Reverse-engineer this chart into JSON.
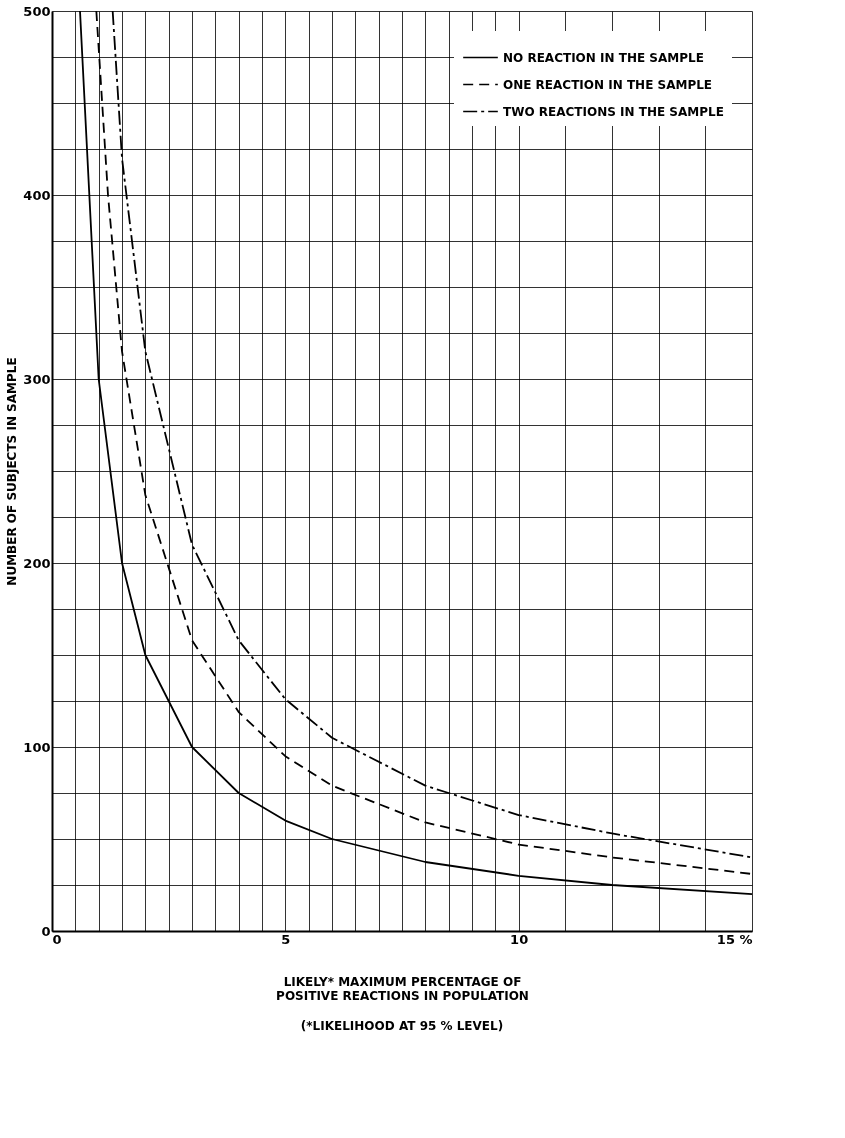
{
  "chart_data": {
    "type": "line",
    "xlabel": "LIKELY* MAXIMUM PERCENTAGE OF POSITIVE REACTIONS IN POPULATION",
    "ylabel": "NUMBER OF SUBJECTS IN SAMPLE",
    "annotations": [
      "(*LIKELIHOOD AT 95 % LEVEL)"
    ],
    "xlim": [
      0,
      15
    ],
    "ylim": [
      0,
      500
    ],
    "xticks": [
      0,
      {
        "value": 0.5,
        "label": null
      },
      {
        "value": 1,
        "label": null
      },
      {
        "value": 1.5,
        "label": null
      },
      {
        "value": 2,
        "label": null
      },
      {
        "value": 2.5,
        "label": null
      },
      {
        "value": 3,
        "label": null
      },
      {
        "value": 3.5,
        "label": null
      },
      {
        "value": 4,
        "label": null
      },
      {
        "value": 4.5,
        "label": null
      },
      5,
      {
        "value": 5.5,
        "label": null
      },
      {
        "value": 6,
        "label": null
      },
      {
        "value": 6.5,
        "label": null
      },
      {
        "value": 7,
        "label": null
      },
      {
        "value": 7.5,
        "label": null
      },
      {
        "value": 8,
        "label": null
      },
      {
        "value": 8.5,
        "label": null
      },
      {
        "value": 9,
        "label": null
      },
      {
        "value": 9.5,
        "label": null
      },
      10,
      {
        "value": 11,
        "label": null
      },
      {
        "value": 12,
        "label": null
      },
      {
        "value": 13,
        "label": null
      },
      {
        "value": 14,
        "label": null
      },
      {
        "value": 15,
        "label": "15 %"
      }
    ],
    "yticks": [
      0,
      {
        "value": 25,
        "label": null
      },
      {
        "value": 50,
        "label": null
      },
      {
        "value": 75,
        "label": null
      },
      100,
      {
        "value": 125,
        "label": null
      },
      {
        "value": 150,
        "label": null
      },
      {
        "value": 175,
        "label": null
      },
      200,
      {
        "value": 225,
        "label": null
      },
      {
        "value": 250,
        "label": null
      },
      {
        "value": 275,
        "label": null
      },
      300,
      {
        "value": 325,
        "label": null
      },
      {
        "value": 350,
        "label": null
      },
      {
        "value": 375,
        "label": null
      },
      400,
      {
        "value": 425,
        "label": null
      },
      {
        "value": 450,
        "label": null
      },
      {
        "value": 475,
        "label": null
      },
      500
    ],
    "grid": true,
    "legend": "top right",
    "marker": "none",
    "series": [
      {
        "name": "NO REACTION IN THE SAMPLE",
        "color": "#000000",
        "line_style": "solid",
        "x": [
          0.6,
          1,
          1.5,
          2,
          3,
          4,
          5,
          6,
          8,
          10,
          12,
          15
        ],
        "values": [
          500,
          300,
          200,
          150,
          100,
          75,
          60,
          50,
          37.5,
          30,
          25,
          20
        ]
      },
      {
        "name": "ONE REACTION IN THE SAMPLE",
        "color": "#000000",
        "line_style": "dashed",
        "x": [
          0.95,
          1.2,
          1.5,
          2,
          3,
          4,
          5,
          6,
          8,
          10,
          12,
          15
        ],
        "values": [
          500,
          400,
          315,
          237,
          158,
          119,
          95,
          79,
          59,
          47,
          40,
          31
        ]
      },
      {
        "name": "TWO REACTIONS IN THE SAMPLE",
        "color": "#000000",
        "line_style": "dashdot",
        "x": [
          1.3,
          1.5,
          2,
          3,
          4,
          5,
          6,
          8,
          10,
          12,
          15
        ],
        "values": [
          500,
          420,
          315,
          210,
          158,
          126,
          105,
          79,
          63,
          53,
          40
        ]
      }
    ]
  }
}
